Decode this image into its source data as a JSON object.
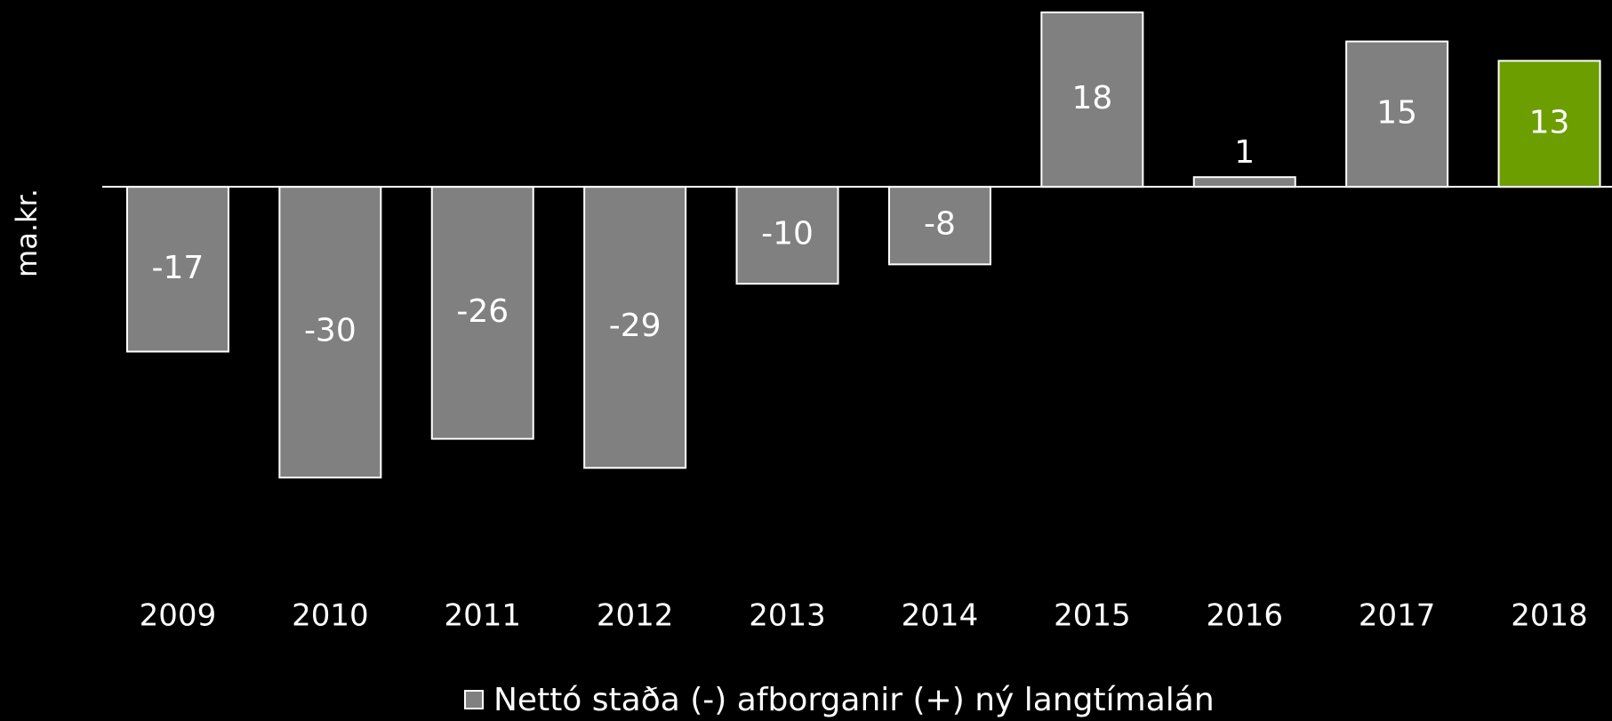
{
  "chart_data": {
    "type": "bar",
    "y_label": "ma.kr.",
    "categories": [
      "2009",
      "2010",
      "2011",
      "2012",
      "2013",
      "2014",
      "2015",
      "2016",
      "2017",
      "2018"
    ],
    "series": [
      {
        "name": "Nettó staða (-) afborganir (+) ný langtímalán",
        "color": "#808080",
        "values": [
          -17,
          -30,
          -26,
          -29,
          -10,
          -8,
          18,
          1,
          15,
          13
        ]
      }
    ],
    "bar_colors": [
      "#808080",
      "#808080",
      "#808080",
      "#808080",
      "#808080",
      "#808080",
      "#808080",
      "#808080",
      "#808080",
      "#6c9e00"
    ],
    "ylim": [
      -32,
      19
    ]
  }
}
